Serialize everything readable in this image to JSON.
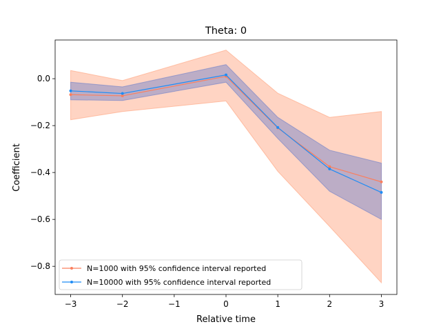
{
  "chart_data": {
    "type": "line",
    "title": "Theta: 0",
    "xlabel": "Relative time",
    "ylabel": "Coefficient",
    "xlim": [
      -3.3,
      3.3
    ],
    "ylim": [
      -0.92,
      0.165
    ],
    "xticks": [
      -3,
      -2,
      -1,
      0,
      1,
      2,
      3
    ],
    "xtick_labels": [
      "−3",
      "−2",
      "−1",
      "0",
      "1",
      "2",
      "3"
    ],
    "yticks": [
      0.0,
      -0.2,
      -0.4,
      -0.6,
      -0.8
    ],
    "ytick_labels": [
      "0.0",
      "−0.2",
      "−0.4",
      "−0.6",
      "−0.8"
    ],
    "grid": false,
    "legend_position": "lower-left",
    "x": [
      -3,
      -2,
      0,
      1,
      2,
      3
    ],
    "series": [
      {
        "name": "N=1000 with 95% confidence interval reported",
        "color": "#fa7f5e",
        "band_color": "#ffa07a",
        "values": [
          -0.068,
          -0.073,
          0.01,
          -0.21,
          -0.375,
          -0.44
        ],
        "lower": [
          -0.175,
          -0.14,
          -0.095,
          -0.395,
          -0.63,
          -0.87
        ],
        "upper": [
          0.035,
          -0.008,
          0.122,
          -0.062,
          -0.165,
          -0.14
        ]
      },
      {
        "name": "N=10000 with 95% confidence interval reported",
        "color": "#1e8cf5",
        "band_color": "#6a7fc9",
        "values": [
          -0.052,
          -0.063,
          0.016,
          -0.208,
          -0.385,
          -0.485
        ],
        "lower": [
          -0.09,
          -0.093,
          -0.015,
          -0.255,
          -0.48,
          -0.6
        ],
        "upper": [
          -0.015,
          -0.035,
          0.06,
          -0.165,
          -0.305,
          -0.36
        ]
      }
    ]
  }
}
